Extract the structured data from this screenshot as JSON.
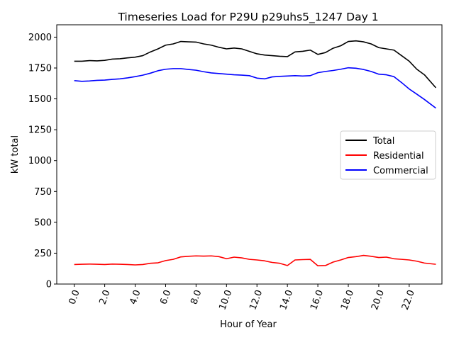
{
  "chart_data": {
    "type": "line",
    "title": "Timeseries Load for P29U p29uhs5_1247  Day 1",
    "xlabel": "Hour of Year",
    "ylabel": "kW total",
    "xlim": [
      -1.15,
      24.15
    ],
    "ylim": [
      0,
      2100
    ],
    "xticks": [
      0,
      2,
      4,
      6,
      8,
      10,
      12,
      14,
      16,
      18,
      20,
      22
    ],
    "xtick_labels": [
      "0.0",
      "2.0",
      "4.0",
      "6.0",
      "8.0",
      "10.0",
      "12.0",
      "14.0",
      "16.0",
      "18.0",
      "20.0",
      "22.0"
    ],
    "yticks": [
      0,
      250,
      500,
      750,
      1000,
      1250,
      1500,
      1750,
      2000
    ],
    "ytick_labels": [
      "0",
      "250",
      "500",
      "750",
      "1000",
      "1250",
      "1500",
      "1750",
      "2000"
    ],
    "grid": false,
    "legend_position": "center-right",
    "series": [
      {
        "name": "Total",
        "color": "#000000",
        "x": [
          0,
          0.5,
          1,
          1.5,
          2,
          2.5,
          3,
          3.5,
          4,
          4.5,
          5,
          5.5,
          6,
          6.5,
          7,
          7.5,
          8,
          8.5,
          9,
          9.5,
          10,
          10.5,
          11,
          11.5,
          12,
          12.5,
          13,
          13.5,
          14,
          14.5,
          15,
          15.5,
          16,
          16.5,
          17,
          17.5,
          18,
          18.5,
          19,
          19.5,
          20,
          20.5,
          21,
          21.5,
          22,
          22.5,
          23,
          23.75
        ],
        "values": [
          1805,
          1805,
          1810,
          1808,
          1812,
          1822,
          1825,
          1832,
          1838,
          1850,
          1880,
          1905,
          1935,
          1945,
          1965,
          1962,
          1960,
          1945,
          1935,
          1918,
          1905,
          1912,
          1905,
          1885,
          1865,
          1855,
          1850,
          1845,
          1842,
          1880,
          1885,
          1895,
          1860,
          1875,
          1910,
          1930,
          1965,
          1970,
          1962,
          1945,
          1915,
          1905,
          1895,
          1850,
          1805,
          1740,
          1695,
          1590
        ]
      },
      {
        "name": "Residential",
        "color": "#ff0000",
        "x": [
          0,
          0.5,
          1,
          1.5,
          2,
          2.5,
          3,
          3.5,
          4,
          4.5,
          5,
          5.5,
          6,
          6.5,
          7,
          7.5,
          8,
          8.5,
          9,
          9.5,
          10,
          10.5,
          11,
          11.5,
          12,
          12.5,
          13,
          13.5,
          14,
          14.5,
          15,
          15.5,
          16,
          16.5,
          17,
          17.5,
          18,
          18.5,
          19,
          19.5,
          20,
          20.5,
          21,
          21.5,
          22,
          22.5,
          23,
          23.75
        ],
        "values": [
          158,
          160,
          162,
          160,
          158,
          162,
          160,
          158,
          155,
          158,
          168,
          172,
          190,
          200,
          220,
          225,
          228,
          226,
          228,
          222,
          205,
          218,
          212,
          200,
          195,
          188,
          175,
          168,
          150,
          195,
          198,
          200,
          148,
          150,
          178,
          195,
          215,
          222,
          232,
          225,
          215,
          218,
          205,
          200,
          195,
          185,
          170,
          160
        ]
      },
      {
        "name": "Commercial",
        "color": "#0000ff",
        "x": [
          0,
          0.5,
          1,
          1.5,
          2,
          2.5,
          3,
          3.5,
          4,
          4.5,
          5,
          5.5,
          6,
          6.5,
          7,
          7.5,
          8,
          8.5,
          9,
          9.5,
          10,
          10.5,
          11,
          11.5,
          12,
          12.5,
          13,
          13.5,
          14,
          14.5,
          15,
          15.5,
          16,
          16.5,
          17,
          17.5,
          18,
          18.5,
          19,
          19.5,
          20,
          20.5,
          21,
          21.5,
          22,
          22.5,
          23,
          23.75
        ],
        "values": [
          1648,
          1642,
          1645,
          1650,
          1652,
          1658,
          1662,
          1670,
          1680,
          1692,
          1708,
          1728,
          1740,
          1745,
          1745,
          1738,
          1732,
          1720,
          1710,
          1705,
          1700,
          1695,
          1692,
          1688,
          1668,
          1662,
          1678,
          1682,
          1685,
          1688,
          1685,
          1688,
          1712,
          1722,
          1730,
          1740,
          1752,
          1748,
          1738,
          1722,
          1700,
          1695,
          1680,
          1632,
          1580,
          1538,
          1495,
          1425
        ]
      }
    ]
  }
}
